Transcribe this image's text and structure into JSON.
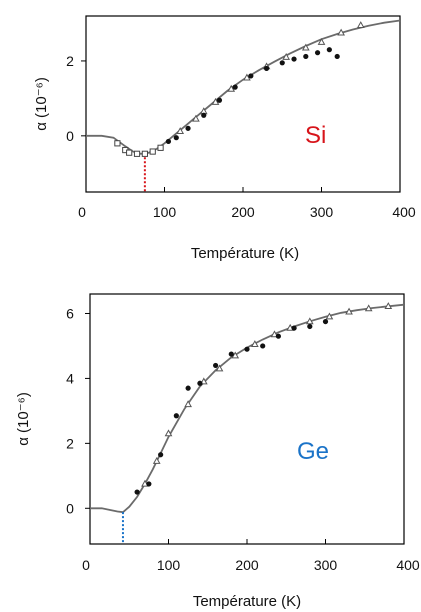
{
  "chart_data": [
    {
      "type": "scatter",
      "panel": "top",
      "annotation": "Si",
      "annotation_color": "#d7141a",
      "marker_color": "#d7141a",
      "xlabel": "Température (K)",
      "ylabel": "α (10⁻⁶)",
      "xlim": [
        0,
        400
      ],
      "ylim": [
        -1.5,
        3.2
      ],
      "xticks": [
        "0",
        "100",
        "200",
        "300",
        "400"
      ],
      "yticks": [
        "2",
        "0"
      ],
      "grid": false,
      "curve": {
        "x": [
          0,
          20,
          35,
          50,
          60,
          70,
          80,
          90,
          100,
          120,
          140,
          160,
          180,
          200,
          220,
          240,
          260,
          280,
          300,
          320,
          340,
          360,
          380,
          400
        ],
        "y": [
          0,
          0,
          -0.05,
          -0.28,
          -0.42,
          -0.48,
          -0.45,
          -0.35,
          -0.2,
          0.15,
          0.5,
          0.85,
          1.2,
          1.5,
          1.75,
          1.98,
          2.2,
          2.4,
          2.58,
          2.72,
          2.84,
          2.94,
          3.02,
          3.08
        ]
      },
      "marker_x": 75,
      "series": [
        {
          "marker": "square-open",
          "points": [
            [
              40,
              -0.2
            ],
            [
              50,
              -0.38
            ],
            [
              55,
              -0.45
            ],
            [
              65,
              -0.48
            ],
            [
              75,
              -0.48
            ],
            [
              85,
              -0.42
            ],
            [
              95,
              -0.32
            ]
          ]
        },
        {
          "marker": "triangle-open",
          "points": [
            [
              120,
              0.12
            ],
            [
              140,
              0.45
            ],
            [
              150,
              0.65
            ],
            [
              165,
              0.9
            ],
            [
              185,
              1.25
            ],
            [
              205,
              1.55
            ],
            [
              230,
              1.85
            ],
            [
              255,
              2.1
            ],
            [
              280,
              2.35
            ],
            [
              300,
              2.5
            ],
            [
              325,
              2.75
            ],
            [
              350,
              2.95
            ]
          ]
        },
        {
          "marker": "dot",
          "points": [
            [
              105,
              -0.15
            ],
            [
              115,
              -0.05
            ],
            [
              130,
              0.2
            ],
            [
              150,
              0.55
            ],
            [
              170,
              0.95
            ],
            [
              190,
              1.3
            ],
            [
              210,
              1.6
            ],
            [
              230,
              1.8
            ],
            [
              250,
              1.95
            ],
            [
              265,
              2.05
            ],
            [
              280,
              2.12
            ],
            [
              295,
              2.22
            ],
            [
              310,
              2.3
            ],
            [
              320,
              2.12
            ]
          ]
        }
      ]
    },
    {
      "type": "scatter",
      "panel": "bottom",
      "annotation": "Ge",
      "annotation_color": "#1a73c8",
      "marker_color": "#1a73c8",
      "xlabel": "Température (K)",
      "ylabel": "α (10⁻⁶)",
      "xlim": [
        0,
        400
      ],
      "ylim": [
        -1.1,
        6.6
      ],
      "xticks": [
        "0",
        "100",
        "200",
        "300",
        "400"
      ],
      "yticks": [
        "6",
        "4",
        "2",
        "0"
      ],
      "grid": false,
      "curve": {
        "x": [
          0,
          15,
          25,
          35,
          42,
          50,
          60,
          70,
          80,
          90,
          100,
          120,
          140,
          160,
          180,
          200,
          220,
          240,
          260,
          280,
          300,
          320,
          340,
          360,
          380,
          400
        ],
        "y": [
          0,
          0,
          -0.05,
          -0.1,
          -0.12,
          0.05,
          0.35,
          0.75,
          1.2,
          1.7,
          2.2,
          3.05,
          3.75,
          4.25,
          4.65,
          4.95,
          5.2,
          5.42,
          5.6,
          5.76,
          5.9,
          6.02,
          6.1,
          6.17,
          6.22,
          6.27
        ]
      },
      "marker_x": 42,
      "series": [
        {
          "marker": "triangle-open",
          "points": [
            [
              70,
              0.75
            ],
            [
              85,
              1.45
            ],
            [
              100,
              2.3
            ],
            [
              125,
              3.2
            ],
            [
              145,
              3.9
            ],
            [
              165,
              4.3
            ],
            [
              185,
              4.7
            ],
            [
              210,
              5.05
            ],
            [
              235,
              5.35
            ],
            [
              255,
              5.55
            ],
            [
              280,
              5.75
            ],
            [
              305,
              5.9
            ],
            [
              330,
              6.05
            ],
            [
              355,
              6.15
            ],
            [
              380,
              6.22
            ]
          ]
        },
        {
          "marker": "dot",
          "points": [
            [
              60,
              0.5
            ],
            [
              75,
              0.75
            ],
            [
              90,
              1.65
            ],
            [
              110,
              2.85
            ],
            [
              125,
              3.7
            ],
            [
              140,
              3.85
            ],
            [
              160,
              4.4
            ],
            [
              180,
              4.75
            ],
            [
              200,
              4.9
            ],
            [
              220,
              5.0
            ],
            [
              240,
              5.3
            ],
            [
              260,
              5.55
            ],
            [
              280,
              5.6
            ],
            [
              300,
              5.75
            ]
          ]
        }
      ]
    }
  ]
}
